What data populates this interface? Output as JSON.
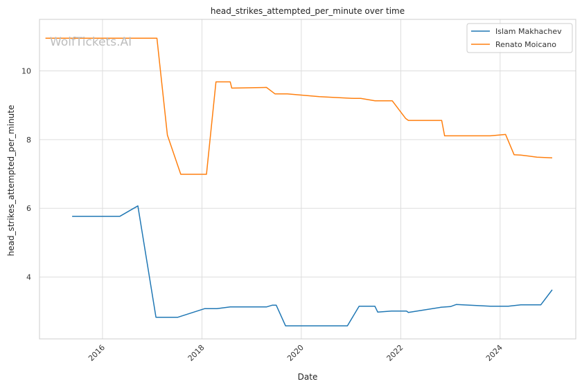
{
  "chart_data": {
    "type": "line",
    "title": "head_strikes_attempted_per_minute over time",
    "xlabel": "Date",
    "ylabel": "head_strikes_attempted_per_minute",
    "watermark": "WolfTickets.AI",
    "x_ticks": [
      "2016",
      "2018",
      "2020",
      "2022",
      "2024"
    ],
    "y_ticks": [
      "4",
      "6",
      "8",
      "10"
    ],
    "xlim": [
      "2014-09-25",
      "2025-07-10"
    ],
    "ylim": [
      2.2,
      11.5
    ],
    "grid": true,
    "legend_position": "top-right",
    "series": [
      {
        "name": "Islam Makhachev",
        "color": "#1f77b4",
        "points": [
          [
            "2015-05-23",
            5.77
          ],
          [
            "2016-05-08",
            5.77
          ],
          [
            "2016-09-17",
            6.07
          ],
          [
            "2017-01-28",
            2.83
          ],
          [
            "2017-07-08",
            2.83
          ],
          [
            "2018-01-20",
            3.08
          ],
          [
            "2018-04-21",
            3.08
          ],
          [
            "2018-07-28",
            3.13
          ],
          [
            "2019-04-20",
            3.13
          ],
          [
            "2019-06-01",
            3.18
          ],
          [
            "2019-07-01",
            3.18
          ],
          [
            "2019-09-07",
            2.58
          ],
          [
            "2020-12-05",
            2.58
          ],
          [
            "2021-03-01",
            3.15
          ],
          [
            "2021-06-25",
            3.15
          ],
          [
            "2021-07-16",
            2.98
          ],
          [
            "2021-10-25",
            3.01
          ],
          [
            "2022-02-12",
            3.01
          ],
          [
            "2022-02-26",
            2.97
          ],
          [
            "2022-10-22",
            3.12
          ],
          [
            "2023-01-01",
            3.14
          ],
          [
            "2023-02-12",
            3.2
          ],
          [
            "2023-10-21",
            3.15
          ],
          [
            "2024-03-01",
            3.15
          ],
          [
            "2024-06-01",
            3.19
          ],
          [
            "2024-10-26",
            3.19
          ],
          [
            "2025-01-18",
            3.63
          ]
        ]
      },
      {
        "name": "Renato Moicano",
        "color": "#ff7f0e",
        "points": [
          [
            "2014-11-08",
            10.95
          ],
          [
            "2017-02-04",
            10.95
          ],
          [
            "2017-04-22",
            8.13
          ],
          [
            "2017-07-29",
            6.99
          ],
          [
            "2018-02-03",
            6.99
          ],
          [
            "2018-04-14",
            9.68
          ],
          [
            "2018-07-28",
            9.68
          ],
          [
            "2018-08-08",
            9.5
          ],
          [
            "2019-04-20",
            9.52
          ],
          [
            "2019-06-22",
            9.33
          ],
          [
            "2019-09-21",
            9.33
          ],
          [
            "2020-05-13",
            9.25
          ],
          [
            "2021-01-20",
            9.2
          ],
          [
            "2021-03-13",
            9.2
          ],
          [
            "2021-06-26",
            9.13
          ],
          [
            "2021-10-30",
            9.13
          ],
          [
            "2022-02-05",
            8.62
          ],
          [
            "2022-02-26",
            8.56
          ],
          [
            "2022-10-29",
            8.56
          ],
          [
            "2022-11-19",
            8.11
          ],
          [
            "2023-10-21",
            8.11
          ],
          [
            "2024-02-10",
            8.15
          ],
          [
            "2024-04-13",
            7.56
          ],
          [
            "2024-06-01",
            7.55
          ],
          [
            "2024-09-28",
            7.49
          ],
          [
            "2025-01-18",
            7.47
          ]
        ]
      }
    ]
  }
}
